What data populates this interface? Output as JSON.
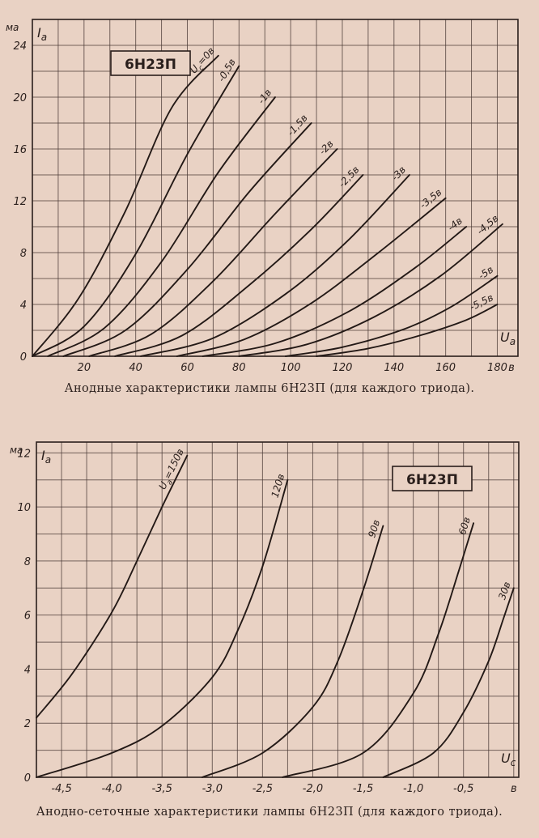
{
  "chart_data": [
    {
      "type": "line",
      "tube_label": "6Н23П",
      "caption": "Анодные характеристики лампы 6Н23П (для каждого триода).",
      "ylabel": "I",
      "ylabel_sub": "а",
      "yunit": "ма",
      "xlabel": "U",
      "xlabel_sub": "а",
      "xunit": "в",
      "xlim": [
        0,
        188
      ],
      "ylim": [
        0,
        26
      ],
      "x_ticks": [
        20,
        40,
        60,
        80,
        100,
        120,
        140,
        160,
        180
      ],
      "x_tick_labels": [
        "20",
        "40",
        "60",
        "80",
        "100",
        "120",
        "140",
        "160",
        "180"
      ],
      "y_ticks": [
        0,
        4,
        8,
        12,
        16,
        20,
        24
      ],
      "y_tick_labels": [
        "0",
        "4",
        "8",
        "12",
        "16",
        "20",
        "24"
      ],
      "grid": true,
      "series": [
        {
          "name": "U",
          "name_sub": "c",
          "name_suffix": "=0в",
          "x": [
            0,
            18,
            36,
            54,
            72
          ],
          "y": [
            0,
            4.5,
            11.2,
            19.2,
            23.2
          ]
        },
        {
          "name": "-0,5в",
          "x": [
            0,
            20,
            40,
            60,
            80
          ],
          "y": [
            0,
            2.3,
            7.9,
            15.6,
            22.4
          ]
        },
        {
          "name": "-1в",
          "x": [
            6,
            28,
            50,
            72,
            94
          ],
          "y": [
            0,
            2.2,
            7.3,
            14.2,
            20.0
          ]
        },
        {
          "name": "-1,5в",
          "x": [
            12,
            36,
            60,
            84,
            108
          ],
          "y": [
            0,
            2.0,
            6.7,
            12.7,
            18.0
          ]
        },
        {
          "name": "-2в",
          "x": [
            22,
            46,
            70,
            94,
            118
          ],
          "y": [
            0,
            1.7,
            5.8,
            11.0,
            16.0
          ]
        },
        {
          "name": "-2,5в",
          "x": [
            32,
            58,
            84,
            108,
            128
          ],
          "y": [
            0,
            1.6,
            5.5,
            9.8,
            14.0
          ]
        },
        {
          "name": "-3в",
          "x": [
            42,
            70,
            98,
            122,
            146
          ],
          "y": [
            0,
            1.4,
            4.8,
            8.9,
            14.0
          ]
        },
        {
          "name": "-3,5в",
          "x": [
            56,
            82,
            108,
            134,
            160
          ],
          "y": [
            0,
            1.3,
            4.1,
            8.0,
            12.2
          ]
        },
        {
          "name": "-4в",
          "x": [
            66,
            94,
            122,
            148,
            168
          ],
          "y": [
            0,
            1.0,
            3.4,
            6.8,
            10.0
          ]
        },
        {
          "name": "-4,5в",
          "x": [
            80,
            106,
            132,
            158,
            182
          ],
          "y": [
            0,
            0.9,
            3.0,
            6.2,
            10.2
          ]
        },
        {
          "name": "-5в",
          "x": [
            98,
            120,
            144,
            162,
            180
          ],
          "y": [
            0,
            0.7,
            2.1,
            3.8,
            6.2
          ]
        },
        {
          "name": "-5,5в",
          "x": [
            110,
            130,
            150,
            168,
            180
          ],
          "y": [
            0,
            0.6,
            1.6,
            2.8,
            4.0
          ]
        }
      ]
    },
    {
      "type": "line",
      "tube_label": "6Н23П",
      "caption": "Анодно-сеточные характеристики лампы 6Н23П (для каждого триода).",
      "ylabel": "I",
      "ylabel_sub": "а",
      "yunit": "ма",
      "xlabel": "U",
      "xlabel_sub": "c",
      "xunit": "в",
      "xlim": [
        -4.75,
        0.05
      ],
      "ylim": [
        0,
        12.4
      ],
      "x_ticks": [
        -4.5,
        -4.0,
        -3.5,
        -3.0,
        -2.5,
        -2.0,
        -1.5,
        -1.0,
        -0.5,
        0
      ],
      "x_tick_labels": [
        "-4,5",
        "-4,0",
        "-3,5",
        "-3,0",
        "-2,5",
        "-2,0",
        "-1,5",
        "-1,0",
        "-0,5",
        "в"
      ],
      "y_ticks": [
        0,
        2,
        4,
        6,
        8,
        10,
        12
      ],
      "y_tick_labels": [
        "0",
        "2",
        "4",
        "6",
        "8",
        "10",
        "12"
      ],
      "grid": true,
      "series": [
        {
          "name": "U",
          "name_sub": "а",
          "name_suffix": "=150в",
          "x": [
            -4.75,
            -4.4,
            -4.0,
            -3.75,
            -3.5,
            -3.25
          ],
          "y": [
            2.2,
            3.8,
            6.1,
            8.0,
            10.0,
            11.9
          ]
        },
        {
          "name": "120в",
          "x": [
            -4.75,
            -4.0,
            -3.5,
            -3.0,
            -2.75,
            -2.5,
            -2.25
          ],
          "y": [
            0,
            0.9,
            1.9,
            3.7,
            5.4,
            7.8,
            11.0
          ]
        },
        {
          "name": "90в",
          "x": [
            -3.1,
            -2.5,
            -2.0,
            -1.75,
            -1.5,
            -1.3
          ],
          "y": [
            0,
            0.9,
            2.6,
            4.3,
            6.9,
            9.3
          ]
        },
        {
          "name": "60в",
          "x": [
            -2.3,
            -1.5,
            -1.0,
            -0.75,
            -0.55,
            -0.4
          ],
          "y": [
            0,
            0.9,
            3.1,
            5.3,
            7.6,
            9.4
          ]
        },
        {
          "name": "30в",
          "x": [
            -1.3,
            -0.8,
            -0.5,
            -0.25,
            -0.1,
            0.0
          ],
          "y": [
            0,
            0.9,
            2.4,
            4.3,
            5.9,
            7.0
          ]
        }
      ]
    }
  ]
}
